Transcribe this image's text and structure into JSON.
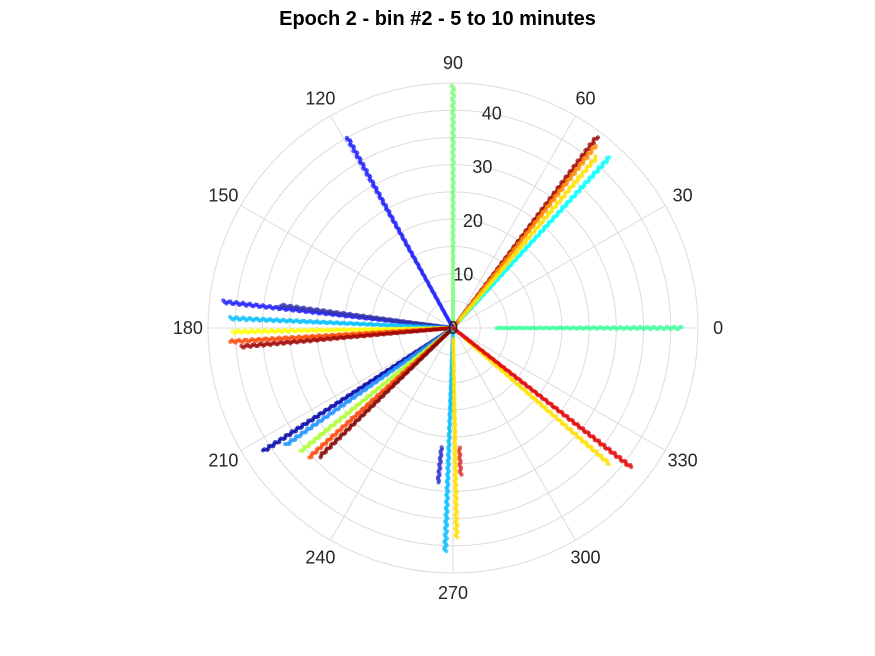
{
  "chart_data": {
    "type": "scatter",
    "subtype": "polar",
    "title": "Epoch 2 - bin #2 - 5 to 10 minutes",
    "angle_unit": "degrees",
    "angle_ticks": [
      "0",
      "30",
      "60",
      "90",
      "120",
      "150",
      "180",
      "210",
      "240",
      "270",
      "300",
      "330"
    ],
    "angle_tick_values": [
      0,
      30,
      60,
      90,
      120,
      150,
      180,
      210,
      240,
      270,
      300,
      330
    ],
    "radial_ticks": [
      "0",
      "10",
      "20",
      "30",
      "40"
    ],
    "radial_tick_values": [
      0,
      10,
      20,
      30,
      40
    ],
    "rlim": [
      0,
      45
    ],
    "grid": true,
    "legend": "none",
    "series": [
      {
        "angle": 90,
        "r": [
          0,
          44.5
        ],
        "color": "#7dff7a"
      },
      {
        "angle": 53,
        "r": [
          0,
          44.0
        ],
        "color": "#a00000"
      },
      {
        "angle": 52,
        "r": [
          0,
          42.5
        ],
        "color": "#ff8c00"
      },
      {
        "angle": 47.5,
        "r": [
          2,
          42.5
        ],
        "color": "#00ffff"
      },
      {
        "angle": 50,
        "r": [
          2,
          41.0
        ],
        "color": "#ffe000"
      },
      {
        "angle": 0,
        "r": [
          8,
          42.0
        ],
        "color": "#3dff9e"
      },
      {
        "angle": 119,
        "r": [
          0,
          40.0
        ],
        "color": "#1a1aff"
      },
      {
        "angle": 173.5,
        "r": [
          0,
          42.5
        ],
        "color": "#1a1aff"
      },
      {
        "angle": 172.5,
        "r": [
          0,
          32.0
        ],
        "color": "#3333aa"
      },
      {
        "angle": 177.5,
        "r": [
          0,
          41.0
        ],
        "color": "#00bfff"
      },
      {
        "angle": 181,
        "r": [
          0,
          40.5
        ],
        "color": "#ffff00"
      },
      {
        "angle": 183.5,
        "r": [
          0,
          41.0
        ],
        "color": "#ff4500"
      },
      {
        "angle": 185,
        "r": [
          0,
          39.0
        ],
        "color": "#a00000"
      },
      {
        "angle": 213,
        "r": [
          0,
          41.5
        ],
        "color": "#0000a8"
      },
      {
        "angle": 215,
        "r": [
          0,
          37.5
        ],
        "color": "#1e90ff"
      },
      {
        "angle": 219,
        "r": [
          0,
          36.0
        ],
        "color": "#adff2f"
      },
      {
        "angle": 222,
        "r": [
          0,
          35.5
        ],
        "color": "#ff4500"
      },
      {
        "angle": 224,
        "r": [
          0,
          34.0
        ],
        "color": "#800000"
      },
      {
        "angle": 268,
        "r": [
          0,
          41.0
        ],
        "color": "#00bfff"
      },
      {
        "angle": 264.5,
        "r": [
          22,
          28.5
        ],
        "color": "#3333cc"
      },
      {
        "angle": 273,
        "r": [
          22,
          27.0
        ],
        "color": "#e03030"
      },
      {
        "angle": 271,
        "r": [
          2,
          38.5
        ],
        "color": "#ffe000"
      },
      {
        "angle": 319,
        "r": [
          3,
          38.0
        ],
        "color": "#ffe000"
      },
      {
        "angle": 322,
        "r": [
          0,
          41.5
        ],
        "color": "#e00000"
      }
    ]
  }
}
